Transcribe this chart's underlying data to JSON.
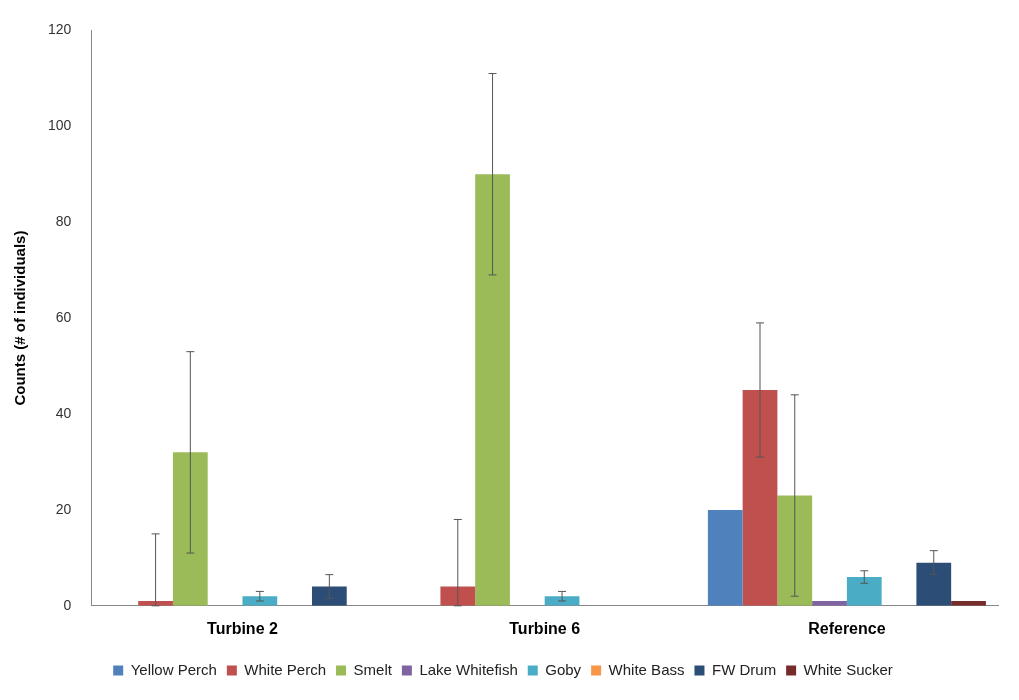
{
  "chart_data": {
    "type": "bar",
    "ylabel": "Counts (# of individuals)",
    "categories": [
      "Turbine 2",
      "Turbine 6",
      "Reference"
    ],
    "series": [
      {
        "name": "Yellow Perch",
        "color": "#4f81bd",
        "values": [
          0,
          0,
          20
        ]
      },
      {
        "name": "White Perch",
        "color": "#c0504d",
        "values": [
          1,
          4,
          45
        ],
        "errors": [
          [
            0,
            15
          ],
          [
            0,
            18
          ],
          [
            31,
            59
          ]
        ]
      },
      {
        "name": "Smelt",
        "color": "#9bbb59",
        "values": [
          32,
          90,
          23
        ],
        "errors": [
          [
            11,
            53
          ],
          [
            69,
            111
          ],
          [
            2,
            44
          ]
        ]
      },
      {
        "name": "Lake Whitefish",
        "color": "#8064a2",
        "values": [
          0,
          0,
          1
        ]
      },
      {
        "name": "Goby",
        "color": "#4bacc6",
        "values": [
          2,
          2,
          6
        ],
        "errors": [
          [
            1,
            3
          ],
          [
            1,
            3
          ],
          [
            4.7,
            7.3
          ]
        ]
      },
      {
        "name": "White Bass",
        "color": "#f79646",
        "values": [
          0,
          0,
          0
        ]
      },
      {
        "name": "FW Drum",
        "color": "#2c4d75",
        "values": [
          4,
          0,
          9
        ],
        "errors": [
          [
            1.5,
            6.5
          ],
          null,
          [
            6.5,
            11.5
          ]
        ]
      },
      {
        "name": "White Sucker",
        "color": "#772c2a",
        "values": [
          0,
          0,
          1
        ]
      }
    ],
    "ylim": [
      0,
      120
    ],
    "yticks": [
      0,
      20,
      40,
      60,
      80,
      100,
      120
    ],
    "grid": false,
    "legend": "bottom"
  }
}
